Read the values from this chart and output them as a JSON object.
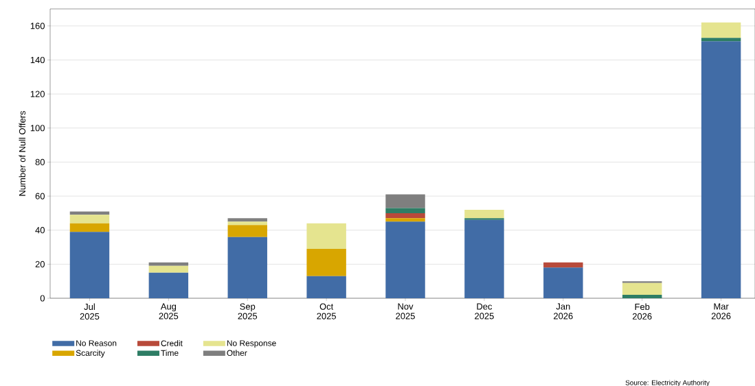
{
  "chart_data": {
    "type": "bar",
    "stacked": true,
    "ylabel": "Number of Null Offers",
    "categories": [
      "Jul 2025",
      "Aug 2025",
      "Sep 2025",
      "Oct 2025",
      "Nov 2025",
      "Dec 2025",
      "Jan 2026",
      "Feb 2026",
      "Mar 2026"
    ],
    "series": [
      {
        "name": "No Reason",
        "color": "#416ca6",
        "values": [
          39,
          15,
          36,
          13,
          45,
          46,
          18,
          0,
          151
        ]
      },
      {
        "name": "Scarcity",
        "color": "#d8a600",
        "values": [
          5,
          0,
          7,
          16,
          2,
          0,
          0,
          0,
          0
        ]
      },
      {
        "name": "Credit",
        "color": "#b84a3a",
        "values": [
          0,
          0,
          0,
          0,
          3,
          0,
          3,
          0,
          0
        ]
      },
      {
        "name": "Time",
        "color": "#2e7d65",
        "values": [
          0,
          0,
          0,
          0,
          3,
          1,
          0,
          2,
          2
        ]
      },
      {
        "name": "No Response",
        "color": "#e5e48f",
        "values": [
          5,
          4,
          2,
          15,
          0,
          5,
          0,
          7,
          9
        ]
      },
      {
        "name": "Other",
        "color": "#7f7f7f",
        "values": [
          2,
          2,
          2,
          0,
          8,
          0,
          0,
          1,
          0
        ]
      }
    ],
    "ylim": [
      0,
      170
    ],
    "yticks": [
      0,
      20,
      40,
      60,
      80,
      100,
      120,
      140,
      160
    ],
    "grid": "y",
    "legend": "bottom left",
    "annotations": [
      "Source: Electricity Authority"
    ]
  }
}
